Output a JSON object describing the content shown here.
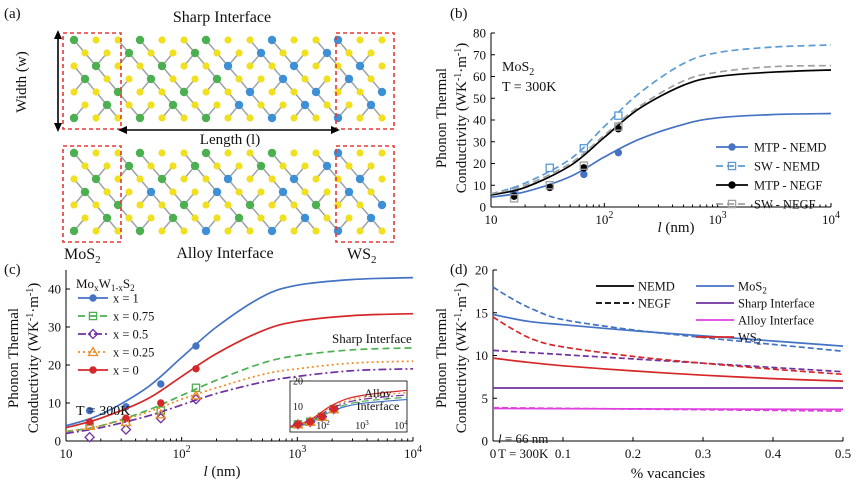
{
  "panel_a": {
    "label": "(a)",
    "sharp_title": "Sharp Interface",
    "alloy_title": "Alloy Interface",
    "width_label": "Width (w)",
    "length_label": "Length (l)",
    "mos2_label": "MoS2",
    "ws2_label": "WS2",
    "colors": {
      "mo": "#4caf50",
      "w": "#3d8fd6",
      "s": "#f0e020",
      "bond": "#9aa0a0",
      "box": "#e53935"
    }
  },
  "chart_data": [
    {
      "panel": "(b)",
      "type": "line",
      "xscale": "log",
      "xlim": [
        10,
        10000
      ],
      "ylim": [
        0,
        80
      ],
      "yticks": [
        0,
        10,
        20,
        30,
        40,
        50,
        60,
        70,
        80
      ],
      "xlabel": "l (nm)",
      "ylabel": "Phonon Thermal Conductivity (WK-1m-1)",
      "annotations": [
        "MoS2",
        "T = 300K"
      ],
      "legend_position": "bottom-right",
      "series": [
        {
          "name": "MTP - NEMD",
          "color": "#4472c4",
          "style": "solid",
          "marker": "circle-filled",
          "points": [
            [
              16,
              6
            ],
            [
              33,
              9
            ],
            [
              66,
              15
            ],
            [
              133,
              25
            ]
          ],
          "curve": [
            [
              10,
              4.5
            ],
            [
              20,
              7
            ],
            [
              50,
              14
            ],
            [
              100,
              23
            ],
            [
              200,
              31
            ],
            [
              500,
              38
            ],
            [
              1000,
              41
            ],
            [
              3000,
              42.5
            ],
            [
              10000,
              43
            ]
          ]
        },
        {
          "name": "SW - NEMD",
          "color": "#5b9bd5",
          "style": "dashed",
          "marker": "square-open",
          "points": [
            [
              16,
              7
            ],
            [
              33,
              18
            ],
            [
              66,
              27
            ],
            [
              133,
              42
            ]
          ],
          "curve": [
            [
              10,
              6
            ],
            [
              20,
              11
            ],
            [
              50,
              22
            ],
            [
              100,
              37
            ],
            [
              200,
              52
            ],
            [
              500,
              66
            ],
            [
              1000,
              71
            ],
            [
              3000,
              73.5
            ],
            [
              10000,
              74.5
            ]
          ]
        },
        {
          "name": "MTP - NEGF",
          "color": "#000000",
          "style": "solid",
          "marker": "circle-filled",
          "points": [
            [
              16,
              5
            ],
            [
              33,
              9
            ],
            [
              66,
              18
            ],
            [
              133,
              36
            ]
          ],
          "curve": [
            [
              10,
              5.5
            ],
            [
              20,
              9
            ],
            [
              50,
              19
            ],
            [
              100,
              32
            ],
            [
              200,
              45
            ],
            [
              500,
              56
            ],
            [
              1000,
              60
            ],
            [
              3000,
              62
            ],
            [
              10000,
              63
            ]
          ]
        },
        {
          "name": "SW - NEGF",
          "color": "#a0a0a0",
          "style": "dashed",
          "marker": "square-open",
          "points": [
            [
              16,
              4
            ],
            [
              33,
              10
            ],
            [
              66,
              19
            ],
            [
              133,
              37
            ]
          ],
          "curve": [
            [
              10,
              6
            ],
            [
              20,
              10
            ],
            [
              50,
              20
            ],
            [
              100,
              33
            ],
            [
              200,
              46
            ],
            [
              500,
              58
            ],
            [
              1000,
              62
            ],
            [
              3000,
              64.5
            ],
            [
              10000,
              65
            ]
          ]
        }
      ]
    },
    {
      "panel": "(c)",
      "type": "line",
      "xscale": "log",
      "xlim": [
        10,
        10000
      ],
      "ylim": [
        0,
        45
      ],
      "yticks": [
        0,
        10,
        20,
        30,
        40
      ],
      "xlabel": "l (nm)",
      "ylabel": "Phonon Thermal Conductivity (WK-1m-1)",
      "legend_title": "MoxW1-xS2",
      "annotations": [
        "T = 300K",
        "Sharp Interface"
      ],
      "legend_position": "top-left",
      "series": [
        {
          "name": "x = 1",
          "color": "#4472c4",
          "style": "solid",
          "marker": "circle-filled",
          "points": [
            [
              16,
              8
            ],
            [
              33,
              9
            ],
            [
              66,
              15
            ],
            [
              133,
              25
            ]
          ],
          "curve": [
            [
              10,
              4
            ],
            [
              20,
              7
            ],
            [
              50,
              14
            ],
            [
              100,
              22
            ],
            [
              200,
              30
            ],
            [
              500,
              38
            ],
            [
              1000,
              41
            ],
            [
              3000,
              42.5
            ],
            [
              10000,
              43
            ]
          ]
        },
        {
          "name": "x = 0.75",
          "color": "#4caf50",
          "style": "dashed",
          "marker": "square-open",
          "points": [
            [
              16,
              4
            ],
            [
              33,
              5
            ],
            [
              66,
              8
            ],
            [
              133,
              14
            ]
          ],
          "curve": [
            [
              10,
              2.5
            ],
            [
              20,
              4
            ],
            [
              50,
              8
            ],
            [
              100,
              12
            ],
            [
              200,
              16
            ],
            [
              500,
              20.5
            ],
            [
              1000,
              22.5
            ],
            [
              3000,
              24
            ],
            [
              10000,
              24.5
            ]
          ]
        },
        {
          "name": "x = 0.5",
          "color": "#7030a0",
          "style": "dashdot",
          "marker": "diamond-open",
          "points": [
            [
              16,
              1
            ],
            [
              33,
              3
            ],
            [
              66,
              6
            ],
            [
              133,
              11
            ]
          ],
          "curve": [
            [
              10,
              2
            ],
            [
              20,
              3.5
            ],
            [
              50,
              6.5
            ],
            [
              100,
              9.5
            ],
            [
              200,
              12.5
            ],
            [
              500,
              15.5
            ],
            [
              1000,
              17
            ],
            [
              3000,
              18.5
            ],
            [
              10000,
              19
            ]
          ]
        },
        {
          "name": "x = 0.25",
          "color": "#f08c28",
          "style": "dotted",
          "marker": "triangle-open",
          "points": [
            [
              16,
              4
            ],
            [
              33,
              5
            ],
            [
              66,
              7
            ],
            [
              133,
              12
            ]
          ],
          "curve": [
            [
              10,
              2.5
            ],
            [
              20,
              4
            ],
            [
              50,
              7.5
            ],
            [
              100,
              11
            ],
            [
              200,
              14
            ],
            [
              500,
              17.5
            ],
            [
              1000,
              19
            ],
            [
              3000,
              20.5
            ],
            [
              10000,
              21
            ]
          ]
        },
        {
          "name": "x = 0",
          "color": "#d62728",
          "style": "solid",
          "marker": "circle-filled",
          "points": [
            [
              16,
              5
            ],
            [
              33,
              6
            ],
            [
              66,
              10
            ],
            [
              133,
              19
            ]
          ],
          "curve": [
            [
              10,
              3.5
            ],
            [
              20,
              6
            ],
            [
              50,
              11
            ],
            [
              100,
              17
            ],
            [
              200,
              23
            ],
            [
              500,
              29
            ],
            [
              1000,
              31.5
            ],
            [
              3000,
              33
            ],
            [
              10000,
              33.5
            ]
          ]
        }
      ],
      "inset": {
        "label": "Alloy Interface",
        "xlim": [
          10,
          10000
        ],
        "ylim": [
          0,
          20
        ],
        "yticks": [
          10,
          20
        ],
        "xticks": [
          "10^2",
          "10^3",
          "10^4"
        ],
        "curve": [
          [
            10,
            2
          ],
          [
            30,
            4
          ],
          [
            100,
            9
          ],
          [
            300,
            12
          ],
          [
            1000,
            13.5
          ],
          [
            10000,
            15
          ]
        ],
        "points": [
          [
            16,
            3
          ],
          [
            33,
            4
          ],
          [
            66,
            6
          ],
          [
            133,
            9
          ]
        ]
      }
    },
    {
      "panel": "(d)",
      "type": "line",
      "xlim": [
        0,
        0.5
      ],
      "ylim": [
        0,
        20
      ],
      "xticks": [
        0,
        0.1,
        0.2,
        0.3,
        0.4,
        0.5
      ],
      "yticks": [
        0,
        5,
        10,
        15,
        20
      ],
      "xlabel": "% vacancies",
      "ylabel": "Phonon Thermal Conductivity (WK-1m-1)",
      "annotations": [
        "l = 66 nm",
        "T = 300K"
      ],
      "legend_position": "top-right",
      "style_legend": [
        {
          "name": "NEMD",
          "style": "solid"
        },
        {
          "name": "NEGF",
          "style": "dashed"
        }
      ],
      "series": [
        {
          "name": "MoS2",
          "color": "#4472c4",
          "nemd": [
            [
              0,
              14.8
            ],
            [
              0.05,
              14
            ],
            [
              0.1,
              13.6
            ],
            [
              0.2,
              12.9
            ],
            [
              0.3,
              12.3
            ],
            [
              0.4,
              11.7
            ],
            [
              0.5,
              11.1
            ]
          ],
          "negf": [
            [
              0,
              18
            ],
            [
              0.03,
              16.5
            ],
            [
              0.06,
              15.3
            ],
            [
              0.1,
              14.2
            ],
            [
              0.2,
              13
            ],
            [
              0.3,
              12.1
            ],
            [
              0.4,
              11.3
            ],
            [
              0.5,
              10.5
            ]
          ]
        },
        {
          "name": "Sharp Interface",
          "color": "#7030a0",
          "nemd": [
            [
              0,
              6.2
            ],
            [
              0.5,
              6.2
            ]
          ],
          "negf": [
            [
              0,
              10.6
            ],
            [
              0.1,
              10.1
            ],
            [
              0.2,
              9.6
            ],
            [
              0.3,
              9.1
            ],
            [
              0.4,
              8.6
            ],
            [
              0.5,
              8.1
            ]
          ]
        },
        {
          "name": "Alloy Interface",
          "color": "#e040e0",
          "nemd": [
            [
              0,
              3.8
            ],
            [
              0.5,
              3.7
            ]
          ],
          "negf": [
            [
              0,
              3.9
            ],
            [
              0.5,
              3.5
            ]
          ]
        },
        {
          "name": "WS2",
          "color": "#d62728",
          "nemd": [
            [
              0,
              9.7
            ],
            [
              0.05,
              9.2
            ],
            [
              0.1,
              8.8
            ],
            [
              0.2,
              8.2
            ],
            [
              0.3,
              7.7
            ],
            [
              0.4,
              7.3
            ],
            [
              0.5,
              7
            ]
          ],
          "negf": [
            [
              0,
              14.5
            ],
            [
              0.03,
              13
            ],
            [
              0.06,
              11.8
            ],
            [
              0.1,
              11
            ],
            [
              0.2,
              9.9
            ],
            [
              0.3,
              9.1
            ],
            [
              0.4,
              8.4
            ],
            [
              0.5,
              7.8
            ]
          ]
        }
      ]
    }
  ]
}
